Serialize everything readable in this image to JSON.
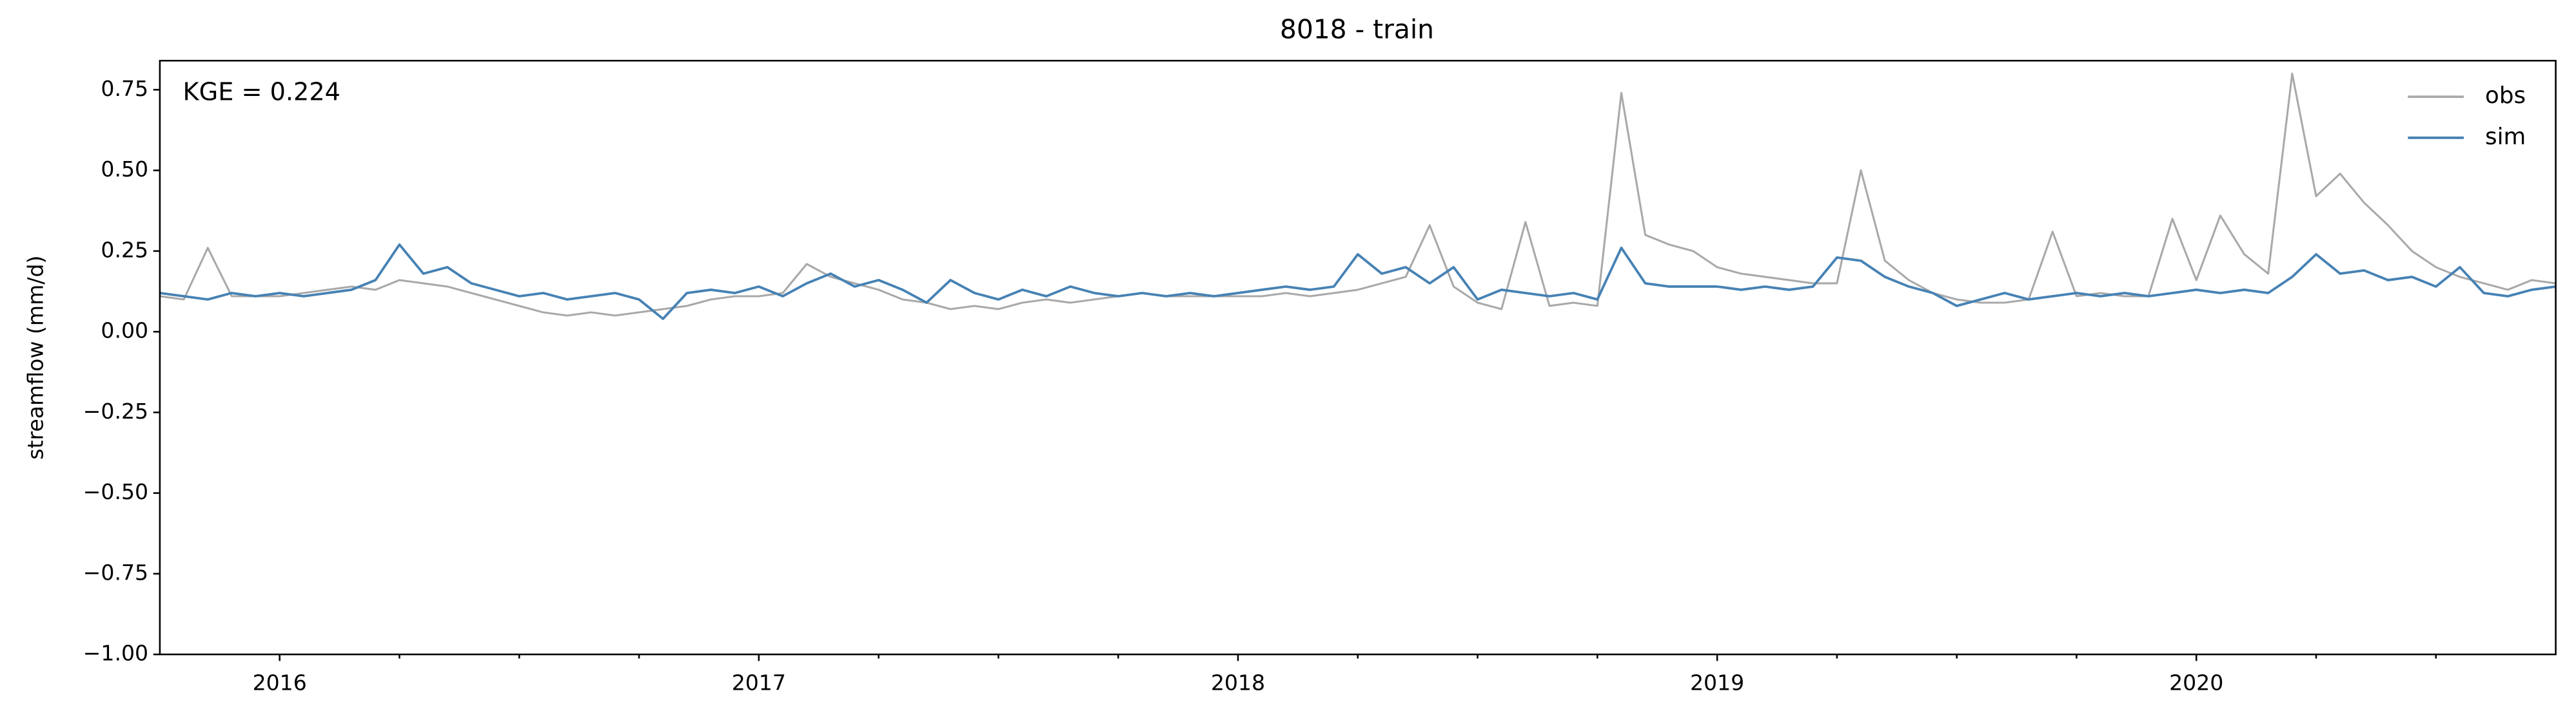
{
  "chart_data": {
    "type": "line",
    "title": "8018 - train",
    "ylabel": "streamflow (mm/d)",
    "annotation": "KGE = 0.224",
    "x": [
      2015.75,
      2015.8,
      2015.85,
      2015.9,
      2015.95,
      2016.0,
      2016.05,
      2016.1,
      2016.15,
      2016.2,
      2016.25,
      2016.3,
      2016.35,
      2016.4,
      2016.45,
      2016.5,
      2016.55,
      2016.6,
      2016.65,
      2016.7,
      2016.75,
      2016.8,
      2016.85,
      2016.9,
      2016.95,
      2017.0,
      2017.05,
      2017.1,
      2017.15,
      2017.2,
      2017.25,
      2017.3,
      2017.35,
      2017.4,
      2017.45,
      2017.5,
      2017.55,
      2017.6,
      2017.65,
      2017.7,
      2017.75,
      2017.8,
      2017.85,
      2017.9,
      2017.95,
      2018.0,
      2018.05,
      2018.1,
      2018.15,
      2018.2,
      2018.25,
      2018.3,
      2018.35,
      2018.4,
      2018.45,
      2018.5,
      2018.55,
      2018.6,
      2018.65,
      2018.7,
      2018.75,
      2018.8,
      2018.85,
      2018.9,
      2018.95,
      2019.0,
      2019.05,
      2019.1,
      2019.15,
      2019.2,
      2019.25,
      2019.3,
      2019.35,
      2019.4,
      2019.45,
      2019.5,
      2019.55,
      2019.6,
      2019.65,
      2019.7,
      2019.75,
      2019.8,
      2019.85,
      2019.9,
      2019.95,
      2020.0,
      2020.05,
      2020.1,
      2020.15,
      2020.2,
      2020.25,
      2020.3,
      2020.35,
      2020.4,
      2020.45,
      2020.5,
      2020.55,
      2020.6,
      2020.65,
      2020.7,
      2020.75
    ],
    "series": [
      {
        "name": "obs",
        "color": "#a9a9a9",
        "values": [
          0.11,
          0.1,
          0.26,
          0.11,
          0.11,
          0.11,
          0.12,
          0.13,
          0.14,
          0.13,
          0.16,
          0.15,
          0.14,
          0.12,
          0.1,
          0.08,
          0.06,
          0.05,
          0.06,
          0.05,
          0.06,
          0.07,
          0.08,
          0.1,
          0.11,
          0.11,
          0.12,
          0.21,
          0.17,
          0.15,
          0.13,
          0.1,
          0.09,
          0.07,
          0.08,
          0.07,
          0.09,
          0.1,
          0.09,
          0.1,
          0.11,
          0.12,
          0.11,
          0.11,
          0.11,
          0.11,
          0.11,
          0.12,
          0.11,
          0.12,
          0.13,
          0.15,
          0.17,
          0.33,
          0.14,
          0.09,
          0.07,
          0.34,
          0.08,
          0.09,
          0.08,
          0.74,
          0.3,
          0.27,
          0.25,
          0.2,
          0.18,
          0.17,
          0.16,
          0.15,
          0.15,
          0.5,
          0.22,
          0.16,
          0.12,
          0.1,
          0.09,
          0.09,
          0.1,
          0.31,
          0.11,
          0.12,
          0.11,
          0.11,
          0.35,
          0.16,
          0.36,
          0.24,
          0.18,
          0.8,
          0.42,
          0.49,
          0.4,
          0.33,
          0.25,
          0.2,
          0.17,
          0.15,
          0.13,
          0.16,
          0.15
        ]
      },
      {
        "name": "sim",
        "color": "#4682b4",
        "values": [
          0.12,
          0.11,
          0.1,
          0.12,
          0.11,
          0.12,
          0.11,
          0.12,
          0.13,
          0.16,
          0.27,
          0.18,
          0.2,
          0.15,
          0.13,
          0.11,
          0.12,
          0.1,
          0.11,
          0.12,
          0.1,
          0.04,
          0.12,
          0.13,
          0.12,
          0.14,
          0.11,
          0.15,
          0.18,
          0.14,
          0.16,
          0.13,
          0.09,
          0.16,
          0.12,
          0.1,
          0.13,
          0.11,
          0.14,
          0.12,
          0.11,
          0.12,
          0.11,
          0.12,
          0.11,
          0.12,
          0.13,
          0.14,
          0.13,
          0.14,
          0.24,
          0.18,
          0.2,
          0.15,
          0.2,
          0.1,
          0.13,
          0.12,
          0.11,
          0.12,
          0.1,
          0.26,
          0.15,
          0.14,
          0.14,
          0.14,
          0.13,
          0.14,
          0.13,
          0.14,
          0.23,
          0.22,
          0.17,
          0.14,
          0.12,
          0.08,
          0.1,
          0.12,
          0.1,
          0.11,
          0.12,
          0.11,
          0.12,
          0.11,
          0.12,
          0.13,
          0.12,
          0.13,
          0.12,
          0.17,
          0.24,
          0.18,
          0.19,
          0.16,
          0.17,
          0.14,
          0.2,
          0.12,
          0.11,
          0.13,
          0.14
        ]
      }
    ],
    "xlim": [
      2015.75,
      2020.75
    ],
    "xticks": [
      2016,
      2017,
      2018,
      2019,
      2020
    ],
    "xminorticks": [
      2016.25,
      2016.5,
      2016.75,
      2017.25,
      2017.5,
      2017.75,
      2018.25,
      2018.5,
      2018.75,
      2019.25,
      2019.5,
      2019.75,
      2020.25,
      2020.5
    ],
    "ylim": [
      -1.0,
      0.84
    ],
    "yticks": [
      {
        "value": -1.0,
        "label": "−1.00"
      },
      {
        "value": -0.75,
        "label": "−0.75"
      },
      {
        "value": -0.5,
        "label": "−0.50"
      },
      {
        "value": -0.25,
        "label": "−0.25"
      },
      {
        "value": 0,
        "label": "0.00"
      },
      0.25,
      {
        "value": 0.5,
        "label": "0.50"
      },
      0.75
    ],
    "legend": "upper right"
  }
}
